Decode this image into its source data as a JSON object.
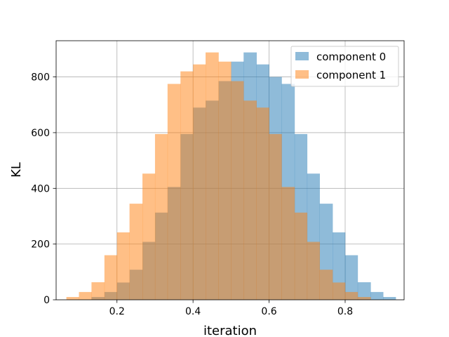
{
  "chart_data": {
    "type": "bar",
    "title": "",
    "xlabel": "iteration",
    "ylabel": "KL",
    "xlim": [
      0.04,
      0.955
    ],
    "ylim": [
      0,
      930
    ],
    "xticks": [
      0.2,
      0.4,
      0.6,
      0.8
    ],
    "xtick_labels": [
      "0.2",
      "0.4",
      "0.6",
      "0.8"
    ],
    "yticks": [
      0,
      200,
      400,
      600,
      800
    ],
    "ytick_labels": [
      "0",
      "200",
      "400",
      "600",
      "800"
    ],
    "grid": true,
    "legend_position": "top-right",
    "series": [
      {
        "name": "component 0",
        "color": "#1f77b4",
        "alpha": 0.5,
        "bin_edges": [
          0.133,
          0.167,
          0.2,
          0.233,
          0.267,
          0.3,
          0.333,
          0.367,
          0.4,
          0.433,
          0.467,
          0.5,
          0.533,
          0.567,
          0.6,
          0.633,
          0.667,
          0.7,
          0.733,
          0.767,
          0.8,
          0.833,
          0.867,
          0.9,
          0.933
        ],
        "counts": [
          10,
          28,
          62,
          108,
          208,
          313,
          405,
          595,
          690,
          715,
          785,
          855,
          888,
          845,
          800,
          775,
          595,
          453,
          345,
          242,
          160,
          63,
          28,
          10
        ]
      },
      {
        "name": "component 1",
        "color": "#ff7f0e",
        "alpha": 0.5,
        "bin_edges": [
          0.067,
          0.1,
          0.133,
          0.167,
          0.2,
          0.233,
          0.267,
          0.3,
          0.333,
          0.367,
          0.4,
          0.433,
          0.467,
          0.5,
          0.533,
          0.567,
          0.6,
          0.633,
          0.667,
          0.7,
          0.733,
          0.767,
          0.8,
          0.833,
          0.867
        ],
        "counts": [
          10,
          28,
          63,
          160,
          242,
          345,
          453,
          595,
          775,
          820,
          845,
          888,
          855,
          785,
          715,
          690,
          595,
          405,
          313,
          208,
          108,
          62,
          28,
          10
        ]
      }
    ]
  }
}
